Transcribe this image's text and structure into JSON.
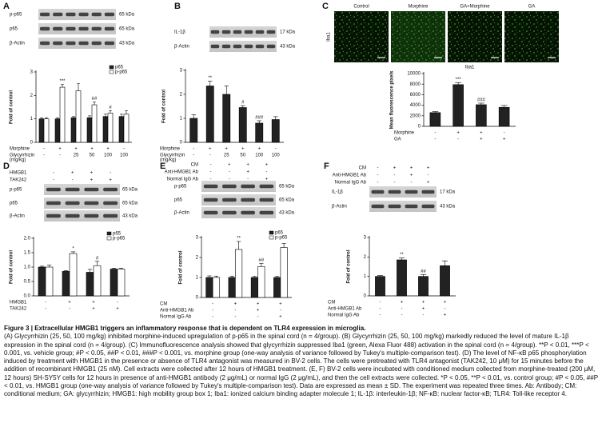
{
  "chart_data": [
    {
      "type": "bar",
      "panel": "A",
      "y_label": "Fold of control",
      "ylim": [
        0,
        3
      ],
      "yticks": [
        0,
        1,
        2,
        3
      ],
      "legend": "upper right",
      "series": [
        {
          "name": "p65",
          "color": "#222222",
          "values": [
            1,
            1,
            1.05,
            1.05,
            1.1,
            1.1
          ],
          "errors": [
            0.05,
            0.05,
            0.05,
            0.08,
            0.1,
            0.1
          ],
          "annotations": [
            null,
            null,
            null,
            null,
            null,
            null
          ]
        },
        {
          "name": "p-p65",
          "color": "#ffffff",
          "values": [
            1,
            2.35,
            2.2,
            1.6,
            1.25,
            1.2
          ],
          "errors": [
            0.05,
            0.12,
            0.3,
            0.12,
            0.1,
            0.15
          ],
          "annotations": [
            null,
            "***",
            null,
            "##",
            "#",
            null
          ]
        }
      ],
      "conditions": [
        {
          "label": "Morphine",
          "values": [
            "-",
            "+",
            "+",
            "+",
            "+",
            "-"
          ]
        },
        {
          "label": "Glycyrrhizin",
          "unit": "(mg/kg)",
          "values": [
            "-",
            "-",
            "25",
            "50",
            "100",
            "100"
          ]
        }
      ]
    },
    {
      "type": "bar",
      "panel": "B",
      "y_label": "Fold of control",
      "ylim": [
        0,
        3
      ],
      "yticks": [
        0,
        1,
        2,
        3
      ],
      "color": "#222222",
      "values": [
        1,
        2.35,
        2.0,
        1.45,
        0.8,
        0.95
      ],
      "errors": [
        0.15,
        0.2,
        0.35,
        0.08,
        0.1,
        0.12
      ],
      "annotations": [
        null,
        "**",
        null,
        "#",
        "###",
        null
      ],
      "conditions": [
        {
          "label": "Morphine",
          "values": [
            "-",
            "+",
            "+",
            "+",
            "+",
            "-"
          ]
        },
        {
          "label": "Glycyrrhizin",
          "unit": "(mg/kg)",
          "values": [
            "-",
            "-",
            "25",
            "50",
            "100",
            "100"
          ]
        }
      ]
    },
    {
      "type": "bar",
      "panel": "C",
      "title": "Iba1",
      "y_label": "Mean fluorescence pixels",
      "ylim": [
        0,
        10000
      ],
      "yticks": [
        0,
        2000,
        4000,
        6000,
        8000,
        10000
      ],
      "color": "#222222",
      "values": [
        2600,
        7900,
        4100,
        3600
      ],
      "errors": [
        200,
        400,
        300,
        350
      ],
      "annotations": [
        null,
        "***",
        "###",
        null
      ],
      "conditions": [
        {
          "label": "Morphine",
          "values": [
            "-",
            "+",
            "+",
            "-"
          ]
        },
        {
          "label": "GA",
          "values": [
            "-",
            "-",
            "+",
            "+"
          ]
        }
      ]
    },
    {
      "type": "bar",
      "panel": "D",
      "y_label": "Fold of control",
      "ylim": [
        0,
        2
      ],
      "yticks": [
        {
          "value": 0,
          "label": "0.0"
        },
        {
          "value": 0.5,
          "label": "0.5"
        },
        {
          "value": 1,
          "label": "1.0"
        },
        {
          "value": 1.5,
          "label": "1.5"
        },
        {
          "value": 2,
          "label": "2.0"
        }
      ],
      "legend": "upper right",
      "series": [
        {
          "name": "p65",
          "color": "#222222",
          "values": [
            1,
            0.85,
            0.82,
            0.93
          ],
          "errors": [
            0.03,
            0.03,
            0.1,
            0.03
          ],
          "annotations": [
            null,
            null,
            null,
            null
          ]
        },
        {
          "name": "p-p65",
          "color": "#ffffff",
          "values": [
            1,
            1.47,
            1.05,
            0.93
          ],
          "errors": [
            0.07,
            0.06,
            0.15,
            0.03
          ],
          "annotations": [
            null,
            "*",
            "#",
            null
          ]
        }
      ],
      "conditions": [
        {
          "label": "HMGB1",
          "values": [
            "-",
            "+",
            "+",
            "-"
          ]
        },
        {
          "label": "TAK242",
          "values": [
            "-",
            "-",
            "+",
            "+"
          ]
        }
      ]
    },
    {
      "type": "bar",
      "panel": "E",
      "y_label": "Fold of control",
      "ylim": [
        0,
        3
      ],
      "yticks": [
        0,
        1,
        2,
        3
      ],
      "legend": "upper right",
      "series": [
        {
          "name": "p65",
          "color": "#222222",
          "values": [
            1,
            1,
            1,
            1
          ],
          "errors": [
            0.08,
            0.07,
            0.05,
            0.05
          ],
          "annotations": [
            null,
            null,
            null,
            null
          ]
        },
        {
          "name": "p-p65",
          "color": "#ffffff",
          "values": [
            1,
            2.4,
            1.55,
            2.5
          ],
          "errors": [
            0.07,
            0.4,
            0.15,
            0.2
          ],
          "annotations": [
            null,
            "**",
            "##",
            null
          ]
        }
      ],
      "conditions": [
        {
          "label": "CM",
          "values": [
            "-",
            "+",
            "+",
            "+"
          ]
        },
        {
          "label": "Anti-HMGB1 Ab",
          "values": [
            "-",
            "-",
            "+",
            "-"
          ]
        },
        {
          "label": "Normal IgG Ab",
          "values": [
            "-",
            "-",
            "-",
            "+"
          ]
        }
      ]
    },
    {
      "type": "bar",
      "panel": "F",
      "y_label": "Fold of control",
      "ylim": [
        0,
        3
      ],
      "yticks": [
        0,
        1,
        2,
        3
      ],
      "color": "#222222",
      "values": [
        1,
        1.85,
        1.0,
        1.55
      ],
      "errors": [
        0.05,
        0.1,
        0.1,
        0.25
      ],
      "annotations": [
        null,
        "**",
        "##",
        null
      ],
      "conditions": [
        {
          "label": "CM",
          "values": [
            "-",
            "+",
            "+",
            "+"
          ]
        },
        {
          "label": "Anti-HMGB1 Ab",
          "values": [
            "-",
            "-",
            "+",
            "-"
          ]
        },
        {
          "label": "Normal IgG Ab",
          "values": [
            "-",
            "-",
            "-",
            "+"
          ]
        }
      ]
    }
  ],
  "blots": [
    {
      "panel": "A",
      "lanes": 6,
      "rows": [
        {
          "label": "p-p65",
          "size": "65 kDa"
        },
        {
          "label": "p65",
          "size": "65 kDa"
        },
        {
          "label": "β-Actin",
          "size": "43 kDa"
        }
      ]
    },
    {
      "panel": "B",
      "lanes": 6,
      "rows": [
        {
          "label": "IL-1β",
          "size": "17 kDa"
        },
        {
          "label": "β-Actin",
          "size": "43 kDa"
        }
      ]
    },
    {
      "panel": "D",
      "lanes": 4,
      "rows": [
        {
          "label": "p-p65",
          "size": "65 kDa"
        },
        {
          "label": "p65",
          "size": "65 kDa"
        },
        {
          "label": "β-Actin",
          "size": "43 kDa"
        }
      ],
      "conditions": [
        {
          "label": "HMGB1",
          "values": [
            "-",
            "+",
            "+",
            "-"
          ]
        },
        {
          "label": "TAK242",
          "values": [
            "-",
            "-",
            "+",
            "+"
          ]
        }
      ]
    },
    {
      "panel": "E",
      "lanes": 4,
      "rows": [
        {
          "label": "p-p65",
          "size": "65 kDa"
        },
        {
          "label": "p65",
          "size": "65 kDa"
        },
        {
          "label": "β-Actin",
          "size": "43 kDa"
        }
      ],
      "conditions": [
        {
          "label": "CM",
          "values": [
            "-",
            "+",
            "+",
            "+"
          ]
        },
        {
          "label": "Anti-HMGB1 Ab",
          "values": [
            "-",
            "-",
            "+",
            "-"
          ]
        },
        {
          "label": "Normal IgG Ab",
          "values": [
            "-",
            "-",
            "-",
            "+"
          ]
        }
      ]
    },
    {
      "panel": "F",
      "lanes": 4,
      "rows": [
        {
          "label": "IL-1β",
          "size": "17 kDa"
        },
        {
          "label": "β-Actin",
          "size": "43 kDa"
        }
      ],
      "conditions": [
        {
          "label": "CM",
          "values": [
            "-",
            "+",
            "+",
            "+"
          ]
        },
        {
          "label": "Anti-HMGB1 Ab",
          "values": [
            "-",
            "-",
            "+",
            "-"
          ]
        },
        {
          "label": "Normal IgG Ab",
          "values": [
            "-",
            "-",
            "-",
            "+"
          ]
        }
      ]
    }
  ],
  "images": {
    "stain": "Iba1",
    "labels": [
      "Control",
      "Morphine",
      "GA+Morphine",
      "GA"
    ]
  },
  "caption": {
    "title": "Figure 3 | Extracellular HMGB1 triggers an inflammatory response that is dependent on TLR4 expression in microglia.",
    "text": "(A) Glycyrrhizin (25, 50, 100 mg/kg) inhibited morphine-induced upregulation of p-p65 in the spinal cord (n = 4/group). (B) Glycyrrhizin (25, 50, 100 mg/kg) markedly reduced the level of mature IL-1β expression in the spinal cord (n = 4/group). (C) Immunofluorescence analysis showed that glycyrrhizin suppressed Iba1 (green, Alexa Fluor 488) activation in the spinal cord (n = 4/group). **P < 0.01, ***P < 0.001, vs. vehicle group; #P < 0.05, ##P < 0.01, ###P < 0.001, vs. morphine group (one-way analysis of variance followed by Tukey's multiple-comparison test). (D) The level of NF-κB p65 phosphorylation induced by treatment with HMGB1 in the presence or absence of TLR4 antagonist was measured in BV-2 cells. The cells were pretreated with TLR4 antagonist (TAK242, 10 μM) for 15 minutes before the addition of recombinant HMGB1 (25 nM). Cell extracts were collected after 12 hours of HMGB1 treatment. (E, F) BV-2 cells were incubated with conditioned medium collected from morphine-treated (200 μM, 12 hours) SH-SY5Y cells for 12 hours in presence of anti-HMGB1 antibody (2 μg/mL) or normal IgG (2 μg/mL), and then the cell extracts were collected. *P < 0.05, **P < 0.01, vs. control group; #P < 0.05, ##P < 0.01, vs. HMGB1 group (one-way analysis of variance followed by Tukey's multiple-comparison test). Data are expressed as mean ± SD. The experiment was repeated three times. Ab: Antibody; CM: conditional medium; GA: glycyrrhizin; HMGB1: high mobility group box 1; Iba1: ionized calcium binding adapter molecule 1; IL-1β: interleukin-1β; NF-κB: nuclear factor-κB; TLR4: Toll-like receptor 4."
  }
}
